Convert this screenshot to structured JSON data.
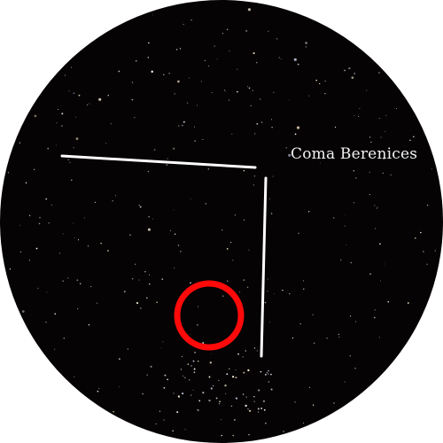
{
  "constellation": {
    "name": "Coma Berenices"
  },
  "colors": {
    "sky": "#050303",
    "pointer_lines": "#ffffff",
    "target_circle": "#ff0a0a"
  }
}
